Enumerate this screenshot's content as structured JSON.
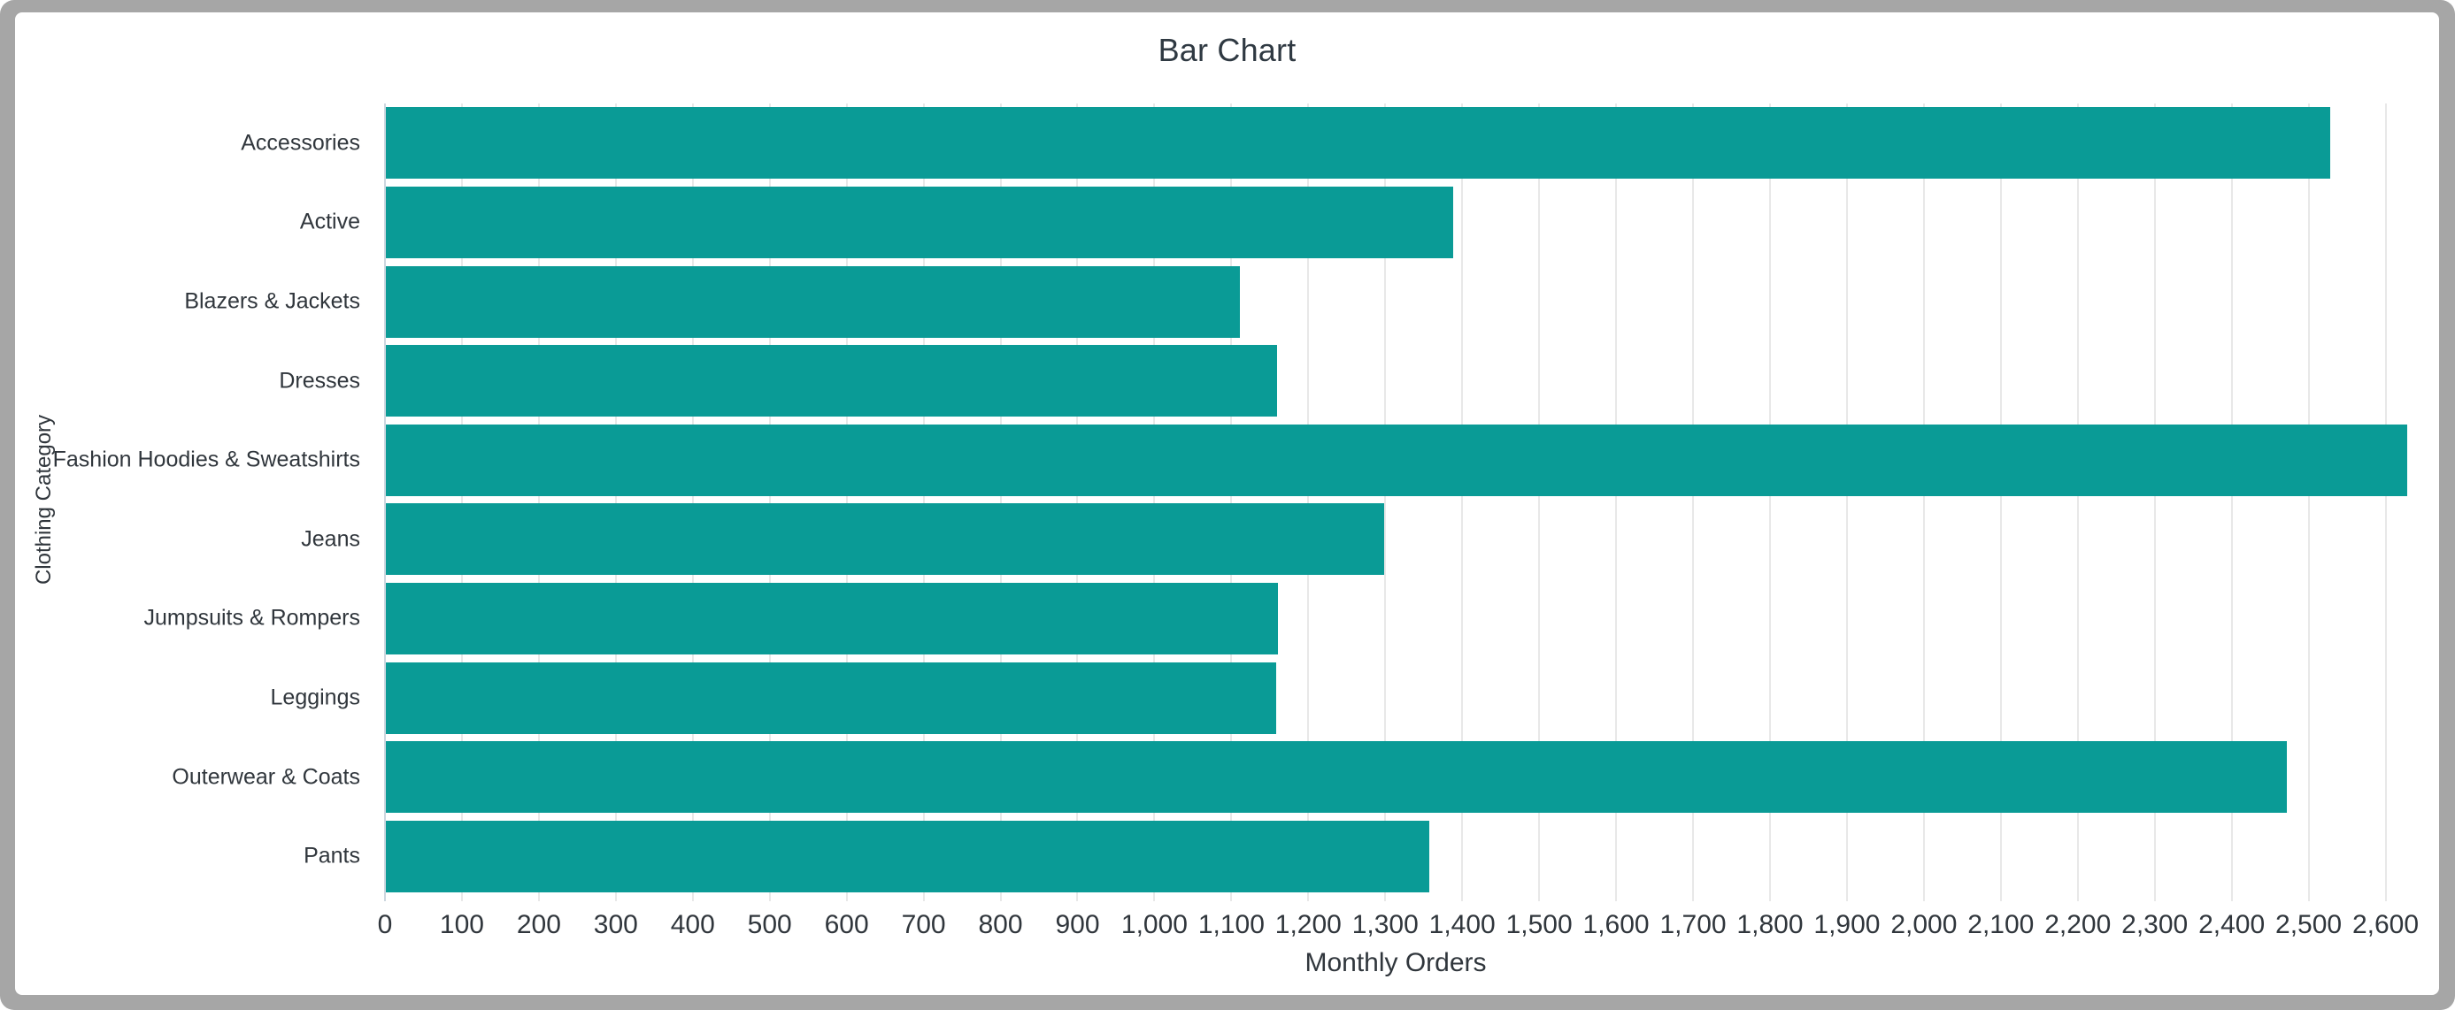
{
  "window": {
    "frame_color": "#a6a6a6",
    "canvas_color": "#ffffff"
  },
  "chart_data": {
    "type": "bar",
    "orientation": "horizontal",
    "title": "Bar Chart",
    "xlabel": "Monthly Orders",
    "ylabel": "Clothing Category",
    "categories": [
      "Accessories",
      "Active",
      "Blazers & Jackets",
      "Dresses",
      "Fashion Hoodies & Sweatshirts",
      "Jeans",
      "Jumpsuits & Rompers",
      "Leggings",
      "Outerwear & Coats",
      "Pants"
    ],
    "values": [
      2527,
      1387,
      1110,
      1158,
      2627,
      1297,
      1159,
      1157,
      2471,
      1356
    ],
    "xlim": [
      0,
      2627
    ],
    "x_tick_interval": 100,
    "x_tick_values": [
      0,
      100,
      200,
      300,
      400,
      500,
      600,
      700,
      800,
      900,
      1000,
      1100,
      1200,
      1300,
      1400,
      1500,
      1600,
      1700,
      1800,
      1900,
      2000,
      2100,
      2200,
      2300,
      2400,
      2500,
      2600
    ],
    "x_tick_labels": [
      "0",
      "100",
      "200",
      "300",
      "400",
      "500",
      "600",
      "700",
      "800",
      "900",
      "1,000",
      "1,100",
      "1,200",
      "1,300",
      "1,400",
      "1,500",
      "1,600",
      "1,700",
      "1,800",
      "1,900",
      "2,000",
      "2,100",
      "2,200",
      "2,300",
      "2,400",
      "2,500",
      "2,600"
    ],
    "grid": true,
    "legend": "none",
    "bar_color": "#0a9b96",
    "grid_color": "#e8e8e8",
    "zero_line_color": "#ccd6df",
    "text_color": "#30363c",
    "title_color": "#2f3942"
  }
}
